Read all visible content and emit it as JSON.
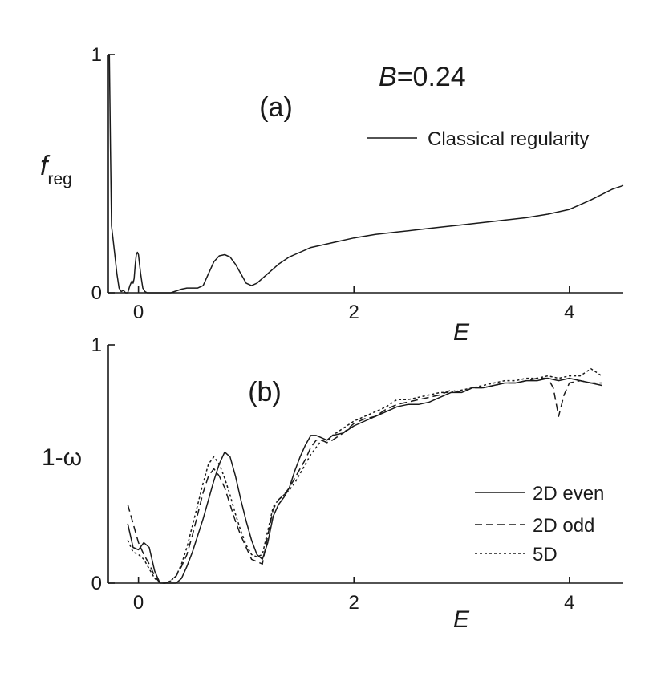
{
  "chart_data": [
    {
      "type": "line",
      "panel_label": "(a)",
      "annotation": {
        "prefix": "B",
        "suffix": "=0.24"
      },
      "xlabel": "E",
      "ylabel": {
        "main": "f",
        "sub": "reg"
      },
      "xlim": [
        -0.28,
        4.5
      ],
      "ylim": [
        0,
        1
      ],
      "xticks": [
        {
          "v": 0,
          "label": "0"
        },
        {
          "v": 2,
          "label": "2"
        },
        {
          "v": 4,
          "label": "4"
        }
      ],
      "yticks": [
        {
          "v": 0,
          "label": "0"
        },
        {
          "v": 1,
          "label": "1"
        }
      ],
      "legend_position": "top-right",
      "series": [
        {
          "name": "Classical regularity",
          "style": "solid",
          "x": [
            -0.28,
            -0.27,
            -0.26,
            -0.25,
            -0.24,
            -0.22,
            -0.2,
            -0.18,
            -0.16,
            -0.14,
            -0.12,
            -0.1,
            -0.08,
            -0.06,
            -0.05,
            -0.04,
            -0.03,
            -0.02,
            -0.01,
            0.0,
            0.01,
            0.02,
            0.03,
            0.04,
            0.06,
            0.08,
            0.1,
            0.12,
            0.2,
            0.3,
            0.4,
            0.45,
            0.5,
            0.55,
            0.6,
            0.65,
            0.7,
            0.75,
            0.8,
            0.85,
            0.9,
            0.95,
            1.0,
            1.05,
            1.1,
            1.2,
            1.3,
            1.4,
            1.5,
            1.6,
            1.8,
            2.0,
            2.2,
            2.4,
            2.6,
            2.8,
            3.0,
            3.2,
            3.4,
            3.6,
            3.8,
            4.0,
            4.2,
            4.4,
            4.5
          ],
          "y": [
            1.0,
            1.0,
            0.6,
            0.28,
            0.24,
            0.16,
            0.08,
            0.02,
            0.005,
            0.01,
            0.0,
            0.0,
            0.03,
            0.05,
            0.04,
            0.06,
            0.12,
            0.16,
            0.17,
            0.16,
            0.12,
            0.08,
            0.05,
            0.02,
            0.005,
            0.0,
            0.0,
            0.0,
            0.0,
            0.0,
            0.015,
            0.02,
            0.02,
            0.02,
            0.03,
            0.08,
            0.13,
            0.155,
            0.16,
            0.15,
            0.12,
            0.08,
            0.04,
            0.03,
            0.04,
            0.08,
            0.12,
            0.15,
            0.17,
            0.19,
            0.21,
            0.23,
            0.245,
            0.255,
            0.265,
            0.275,
            0.285,
            0.295,
            0.305,
            0.315,
            0.33,
            0.35,
            0.39,
            0.435,
            0.45
          ]
        }
      ]
    },
    {
      "type": "line",
      "panel_label": "(b)",
      "xlabel": "E",
      "ylabel": "1-ω",
      "xlim": [
        -0.28,
        4.5
      ],
      "ylim": [
        0,
        1
      ],
      "xticks": [
        {
          "v": 0,
          "label": "0"
        },
        {
          "v": 2,
          "label": "2"
        },
        {
          "v": 4,
          "label": "4"
        }
      ],
      "yticks": [
        {
          "v": 0,
          "label": "0"
        },
        {
          "v": 1,
          "label": "1"
        }
      ],
      "legend_position": "bottom-right",
      "series": [
        {
          "name": "2D even",
          "style": "solid",
          "x": [
            -0.1,
            -0.05,
            0.0,
            0.05,
            0.1,
            0.15,
            0.2,
            0.25,
            0.3,
            0.35,
            0.4,
            0.45,
            0.5,
            0.55,
            0.6,
            0.65,
            0.7,
            0.75,
            0.8,
            0.85,
            0.9,
            0.95,
            1.0,
            1.05,
            1.1,
            1.15,
            1.2,
            1.25,
            1.3,
            1.35,
            1.4,
            1.45,
            1.5,
            1.55,
            1.6,
            1.65,
            1.7,
            1.75,
            1.8,
            1.9,
            2.0,
            2.1,
            2.2,
            2.3,
            2.4,
            2.5,
            2.6,
            2.7,
            2.8,
            2.9,
            3.0,
            3.1,
            3.2,
            3.3,
            3.4,
            3.5,
            3.6,
            3.7,
            3.8,
            3.9,
            4.0,
            4.1,
            4.2,
            4.3
          ],
          "y": [
            0.25,
            0.15,
            0.14,
            0.17,
            0.15,
            0.05,
            0.0,
            0.0,
            0.0,
            0.0,
            0.02,
            0.07,
            0.13,
            0.2,
            0.27,
            0.35,
            0.43,
            0.5,
            0.55,
            0.53,
            0.45,
            0.35,
            0.26,
            0.18,
            0.12,
            0.1,
            0.17,
            0.28,
            0.33,
            0.36,
            0.4,
            0.47,
            0.53,
            0.58,
            0.62,
            0.62,
            0.61,
            0.6,
            0.62,
            0.63,
            0.66,
            0.68,
            0.7,
            0.72,
            0.74,
            0.75,
            0.75,
            0.76,
            0.78,
            0.8,
            0.8,
            0.82,
            0.82,
            0.83,
            0.84,
            0.84,
            0.85,
            0.85,
            0.86,
            0.85,
            0.86,
            0.85,
            0.84,
            0.83
          ]
        },
        {
          "name": "2D odd",
          "style": "dashed",
          "x": [
            -0.1,
            -0.05,
            0.0,
            0.05,
            0.1,
            0.15,
            0.2,
            0.25,
            0.3,
            0.35,
            0.4,
            0.45,
            0.5,
            0.55,
            0.6,
            0.65,
            0.7,
            0.75,
            0.8,
            0.85,
            0.9,
            0.95,
            1.0,
            1.05,
            1.1,
            1.15,
            1.2,
            1.25,
            1.3,
            1.35,
            1.4,
            1.45,
            1.5,
            1.55,
            1.6,
            1.65,
            1.7,
            1.75,
            1.8,
            1.9,
            2.0,
            2.1,
            2.2,
            2.3,
            2.4,
            2.5,
            2.6,
            2.7,
            2.8,
            2.9,
            3.0,
            3.1,
            3.2,
            3.3,
            3.4,
            3.5,
            3.6,
            3.7,
            3.8,
            3.85,
            3.9,
            3.95,
            4.0,
            4.1,
            4.2,
            4.3
          ],
          "y": [
            0.33,
            0.25,
            0.17,
            0.12,
            0.08,
            0.03,
            0.0,
            0.0,
            0.01,
            0.03,
            0.07,
            0.12,
            0.2,
            0.29,
            0.38,
            0.45,
            0.48,
            0.45,
            0.4,
            0.33,
            0.26,
            0.2,
            0.15,
            0.1,
            0.09,
            0.08,
            0.2,
            0.31,
            0.35,
            0.37,
            0.4,
            0.44,
            0.48,
            0.52,
            0.57,
            0.6,
            0.6,
            0.59,
            0.6,
            0.63,
            0.67,
            0.69,
            0.7,
            0.73,
            0.75,
            0.76,
            0.77,
            0.78,
            0.79,
            0.81,
            0.8,
            0.82,
            0.82,
            0.83,
            0.84,
            0.84,
            0.85,
            0.86,
            0.86,
            0.82,
            0.7,
            0.79,
            0.84,
            0.85,
            0.84,
            0.84
          ]
        },
        {
          "name": "5D",
          "style": "dotted",
          "x": [
            -0.1,
            -0.05,
            0.0,
            0.05,
            0.1,
            0.15,
            0.2,
            0.25,
            0.3,
            0.35,
            0.4,
            0.45,
            0.5,
            0.55,
            0.6,
            0.65,
            0.7,
            0.75,
            0.8,
            0.85,
            0.9,
            0.95,
            1.0,
            1.05,
            1.1,
            1.15,
            1.2,
            1.25,
            1.3,
            1.35,
            1.4,
            1.45,
            1.5,
            1.55,
            1.6,
            1.65,
            1.7,
            1.75,
            1.8,
            1.9,
            2.0,
            2.1,
            2.2,
            2.3,
            2.4,
            2.5,
            2.6,
            2.7,
            2.8,
            2.9,
            3.0,
            3.1,
            3.2,
            3.3,
            3.4,
            3.5,
            3.6,
            3.7,
            3.8,
            3.9,
            4.0,
            4.1,
            4.2,
            4.3
          ],
          "y": [
            0.18,
            0.13,
            0.12,
            0.1,
            0.06,
            0.02,
            0.0,
            0.0,
            0.01,
            0.03,
            0.08,
            0.15,
            0.24,
            0.33,
            0.42,
            0.5,
            0.53,
            0.5,
            0.44,
            0.37,
            0.29,
            0.22,
            0.16,
            0.12,
            0.11,
            0.12,
            0.22,
            0.32,
            0.35,
            0.37,
            0.39,
            0.42,
            0.46,
            0.5,
            0.54,
            0.57,
            0.6,
            0.59,
            0.62,
            0.65,
            0.68,
            0.7,
            0.72,
            0.74,
            0.77,
            0.77,
            0.78,
            0.79,
            0.8,
            0.8,
            0.81,
            0.82,
            0.83,
            0.84,
            0.85,
            0.85,
            0.86,
            0.86,
            0.87,
            0.86,
            0.87,
            0.87,
            0.9,
            0.87
          ]
        }
      ]
    }
  ]
}
